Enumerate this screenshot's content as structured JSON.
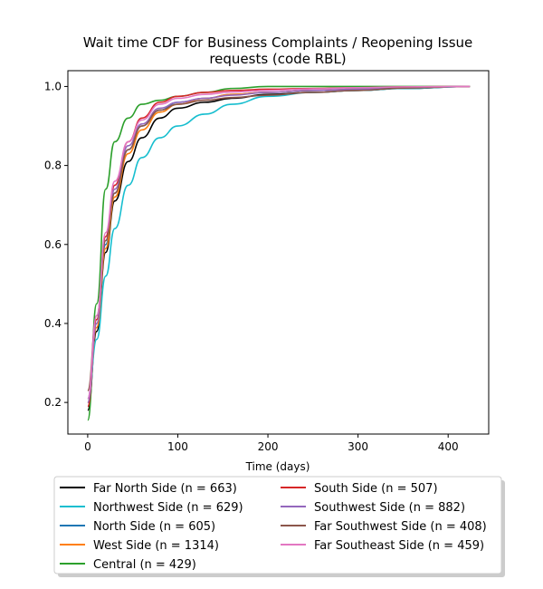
{
  "chart_data": {
    "type": "line",
    "title": "Wait time CDF for Business Complaints / Reopening Issue",
    "subtitle": "requests (code RBL)",
    "xlabel": "Time (days)",
    "ylabel": "",
    "xlim": [
      -22,
      445
    ],
    "ylim": [
      0.12,
      1.04
    ],
    "xticks": [
      0,
      100,
      200,
      300,
      400
    ],
    "yticks": [
      0.2,
      0.4,
      0.6,
      0.8,
      1.0
    ],
    "xtick_labels": [
      "0",
      "100",
      "200",
      "300",
      "400"
    ],
    "ytick_labels": [
      "0.2",
      "0.4",
      "0.6",
      "0.8",
      "1.0"
    ],
    "legend_position": "below",
    "series": [
      {
        "name": "Far North Side (n = 663)",
        "color": "#000000",
        "x": [
          0,
          10,
          20,
          30,
          45,
          60,
          80,
          100,
          130,
          160,
          200,
          250,
          300,
          350,
          424
        ],
        "y": [
          0.18,
          0.38,
          0.58,
          0.71,
          0.81,
          0.87,
          0.92,
          0.945,
          0.96,
          0.97,
          0.98,
          0.985,
          0.99,
          0.995,
          1.0
        ]
      },
      {
        "name": "Northwest Side (n = 629)",
        "color": "#17becf",
        "x": [
          0,
          10,
          20,
          30,
          45,
          60,
          80,
          100,
          130,
          160,
          200,
          250,
          300,
          350,
          424
        ],
        "y": [
          0.2,
          0.36,
          0.52,
          0.64,
          0.75,
          0.82,
          0.87,
          0.9,
          0.93,
          0.955,
          0.975,
          0.985,
          0.99,
          0.995,
          1.0
        ]
      },
      {
        "name": "North Side (n = 605)",
        "color": "#1f77b4",
        "x": [
          0,
          10,
          20,
          30,
          45,
          60,
          80,
          100,
          130,
          160,
          200,
          250,
          300,
          350,
          424
        ],
        "y": [
          0.21,
          0.4,
          0.6,
          0.73,
          0.84,
          0.9,
          0.94,
          0.96,
          0.97,
          0.98,
          0.985,
          0.99,
          0.993,
          0.997,
          1.0
        ]
      },
      {
        "name": "West Side (n = 1314)",
        "color": "#ff7f0e",
        "x": [
          0,
          10,
          20,
          30,
          45,
          60,
          80,
          100,
          130,
          160,
          200,
          250,
          300,
          350,
          424
        ],
        "y": [
          0.2,
          0.39,
          0.59,
          0.72,
          0.83,
          0.89,
          0.935,
          0.955,
          0.97,
          0.98,
          0.985,
          0.99,
          0.993,
          0.997,
          1.0
        ]
      },
      {
        "name": "Central (n = 429)",
        "color": "#2ca02c",
        "x": [
          0,
          10,
          20,
          30,
          45,
          60,
          80,
          100,
          130,
          160,
          200,
          250,
          300,
          350,
          424
        ],
        "y": [
          0.155,
          0.45,
          0.74,
          0.86,
          0.92,
          0.955,
          0.965,
          0.975,
          0.985,
          0.995,
          1.0,
          1.0,
          1.0,
          1.0,
          1.0
        ]
      },
      {
        "name": "South Side (n = 507)",
        "color": "#d62728",
        "x": [
          0,
          10,
          20,
          30,
          45,
          60,
          80,
          100,
          130,
          160,
          200,
          250,
          300,
          350,
          424
        ],
        "y": [
          0.19,
          0.41,
          0.62,
          0.75,
          0.86,
          0.92,
          0.96,
          0.975,
          0.985,
          0.99,
          0.993,
          0.995,
          0.997,
          0.999,
          1.0
        ]
      },
      {
        "name": "Southwest Side (n = 882)",
        "color": "#9467bd",
        "x": [
          0,
          10,
          20,
          30,
          45,
          60,
          80,
          100,
          130,
          160,
          200,
          250,
          300,
          350,
          424
        ],
        "y": [
          0.2,
          0.4,
          0.61,
          0.74,
          0.85,
          0.905,
          0.945,
          0.96,
          0.97,
          0.978,
          0.985,
          0.99,
          0.993,
          0.997,
          1.0
        ]
      },
      {
        "name": "Far Southwest Side (n = 408)",
        "color": "#8c564b",
        "x": [
          0,
          10,
          20,
          30,
          45,
          60,
          80,
          100,
          130,
          160,
          200,
          250,
          300,
          350,
          424
        ],
        "y": [
          0.23,
          0.42,
          0.61,
          0.73,
          0.84,
          0.9,
          0.94,
          0.955,
          0.965,
          0.972,
          0.978,
          0.985,
          0.99,
          0.996,
          1.0
        ]
      },
      {
        "name": "Far Southeast Side (n = 459)",
        "color": "#e377c2",
        "x": [
          0,
          10,
          20,
          30,
          45,
          60,
          80,
          100,
          130,
          160,
          200,
          250,
          300,
          350,
          424
        ],
        "y": [
          0.21,
          0.42,
          0.63,
          0.76,
          0.86,
          0.915,
          0.955,
          0.97,
          0.98,
          0.986,
          0.99,
          0.994,
          0.997,
          0.999,
          1.0
        ]
      }
    ]
  }
}
